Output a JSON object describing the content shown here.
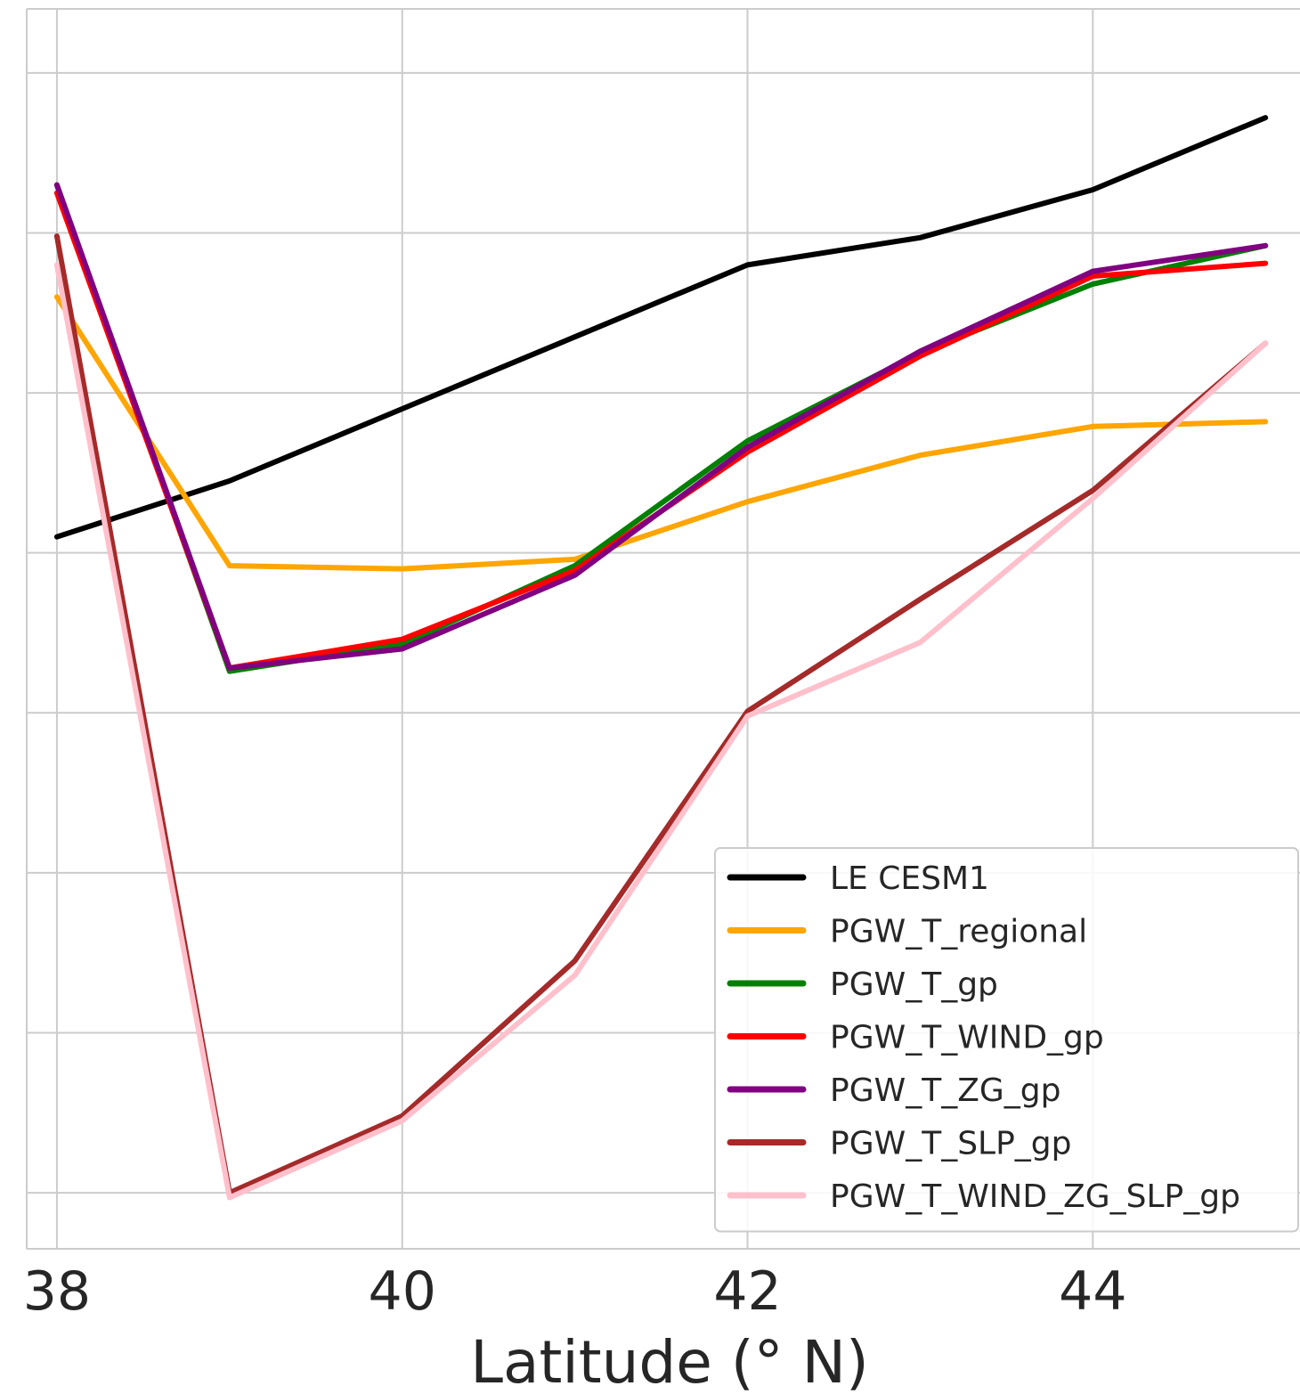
{
  "chart_data": {
    "type": "line",
    "xlabel": "Latitude (° N)",
    "ylabel": "",
    "title": "",
    "xlim": [
      37.825,
      45.2
    ],
    "ylim": [
      -0.35,
      7.4
    ],
    "x_ticks": [
      38,
      40,
      42,
      44
    ],
    "y_gridlines": [
      0,
      1,
      2,
      3,
      4,
      5,
      6,
      7
    ],
    "grid": true,
    "legend_position": "lower-right",
    "x": [
      38,
      39,
      40,
      41,
      42,
      43,
      44,
      45
    ],
    "series": [
      {
        "name": "LE CESM1",
        "color": "#000000",
        "values": [
          4.1,
          4.45,
          4.9,
          5.35,
          5.8,
          5.97,
          6.27,
          6.72
        ]
      },
      {
        "name": "PGW_T_regional",
        "color": "#FFA500",
        "values": [
          5.6,
          3.92,
          3.9,
          3.96,
          4.32,
          4.61,
          4.79,
          4.82
        ]
      },
      {
        "name": "PGW_T_gp",
        "color": "#008000",
        "values": [
          6.3,
          3.26,
          3.43,
          3.92,
          4.7,
          5.25,
          5.68,
          5.92
        ]
      },
      {
        "name": "PGW_T_WIND_gp",
        "color": "#FF0000",
        "values": [
          6.25,
          3.28,
          3.46,
          3.89,
          4.63,
          5.23,
          5.73,
          5.81
        ]
      },
      {
        "name": "PGW_T_ZG_gp",
        "color": "#800080",
        "values": [
          6.3,
          3.28,
          3.4,
          3.86,
          4.66,
          5.26,
          5.76,
          5.92
        ]
      },
      {
        "name": "PGW_T_SLP_gp",
        "color": "#A52A2A",
        "values": [
          5.98,
          0.0,
          0.48,
          1.45,
          3.01,
          3.71,
          4.39,
          5.31
        ]
      },
      {
        "name": "PGW_T_WIND_ZG_SLP_gp",
        "color": "#FFC0CB",
        "values": [
          5.8,
          -0.03,
          0.45,
          1.36,
          2.98,
          3.44,
          4.34,
          5.31
        ]
      }
    ]
  }
}
